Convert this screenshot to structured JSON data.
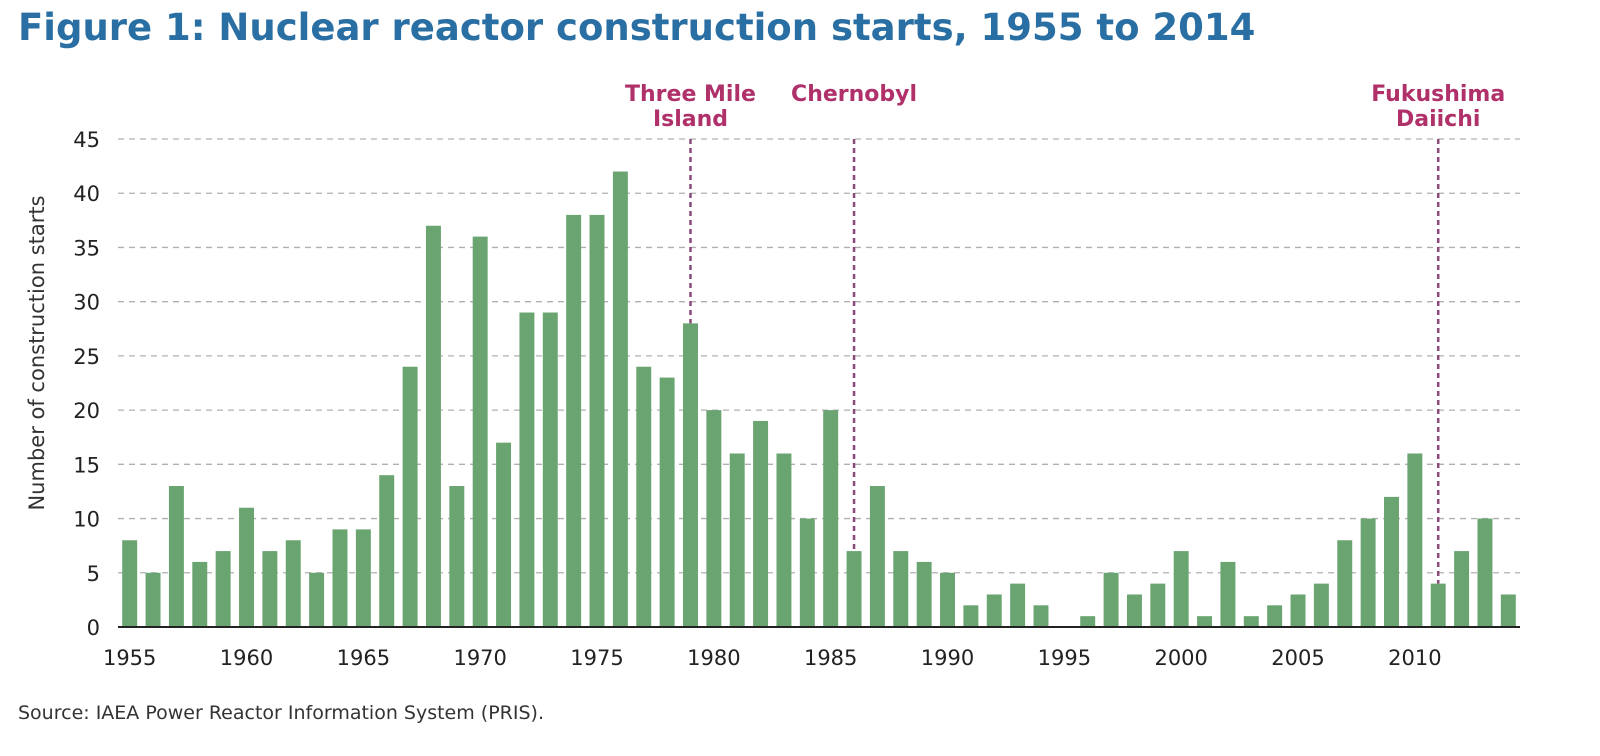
{
  "title": "Figure 1: Nuclear reactor construction starts, 1955 to 2014",
  "source": "Source: IAEA Power Reactor Information System (PRIS).",
  "colors": {
    "title": "#2a6fa3",
    "bar": "#6aa571",
    "annotation_text": "#b0306a",
    "annotation_line": "#8a4a7a",
    "grid": "#b0b0b0"
  },
  "chart_data": {
    "type": "bar",
    "xlabel": "",
    "ylabel": "Number of construction starts",
    "ylim": [
      0,
      45
    ],
    "yticks": [
      0,
      5,
      10,
      15,
      20,
      25,
      30,
      35,
      40,
      45
    ],
    "xticks": [
      1955,
      1960,
      1965,
      1970,
      1975,
      1980,
      1985,
      1990,
      1995,
      2000,
      2005,
      2010
    ],
    "grid": true,
    "categories": [
      1955,
      1956,
      1957,
      1958,
      1959,
      1960,
      1961,
      1962,
      1963,
      1964,
      1965,
      1966,
      1967,
      1968,
      1969,
      1970,
      1971,
      1972,
      1973,
      1974,
      1975,
      1976,
      1977,
      1978,
      1979,
      1980,
      1981,
      1982,
      1983,
      1984,
      1985,
      1986,
      1987,
      1988,
      1989,
      1990,
      1991,
      1992,
      1993,
      1994,
      1995,
      1996,
      1997,
      1998,
      1999,
      2000,
      2001,
      2002,
      2003,
      2004,
      2005,
      2006,
      2007,
      2008,
      2009,
      2010,
      2011,
      2012,
      2013,
      2014
    ],
    "values": [
      8,
      5,
      13,
      6,
      7,
      11,
      7,
      8,
      5,
      9,
      9,
      14,
      24,
      37,
      13,
      36,
      17,
      29,
      29,
      38,
      38,
      42,
      24,
      23,
      28,
      20,
      16,
      19,
      16,
      10,
      20,
      7,
      13,
      7,
      6,
      5,
      2,
      3,
      4,
      2,
      0,
      1,
      5,
      3,
      4,
      7,
      1,
      6,
      1,
      2,
      3,
      4,
      8,
      10,
      12,
      16,
      4,
      7,
      10,
      3
    ],
    "annotations": [
      {
        "year": 1979,
        "label_lines": [
          "Three Mile",
          "Island"
        ]
      },
      {
        "year": 1986,
        "label_lines": [
          "Chernobyl"
        ]
      },
      {
        "year": 2011,
        "label_lines": [
          "Fukushima",
          "Daiichi"
        ]
      }
    ]
  }
}
